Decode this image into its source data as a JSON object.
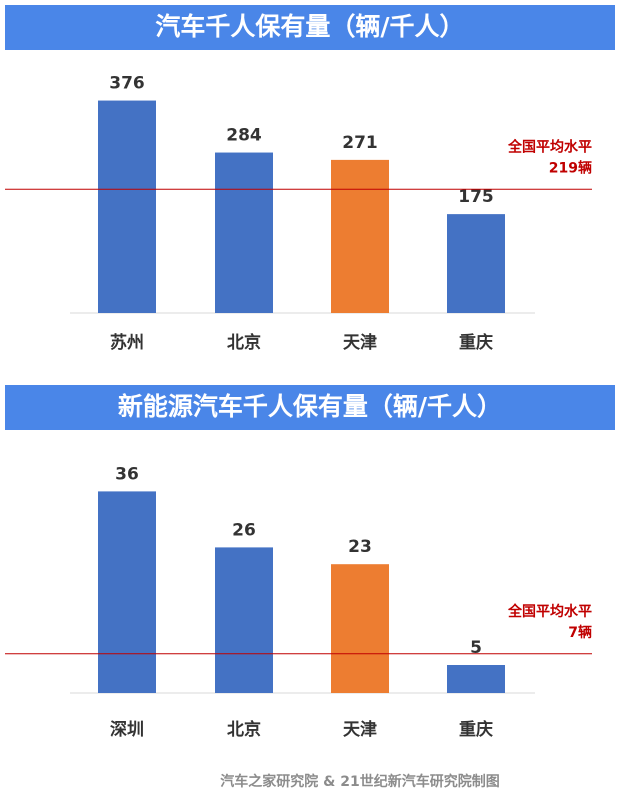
{
  "chart_data": [
    {
      "type": "bar",
      "title": "汽车千人保有量（辆/千人）",
      "categories": [
        "苏州",
        "北京",
        "天津",
        "重庆"
      ],
      "values": [
        376,
        284,
        271,
        175
      ],
      "colors": [
        "#4472c4",
        "#4472c4",
        "#ed7d31",
        "#4472c4"
      ],
      "ylim": [
        0,
        400
      ],
      "reference": {
        "value": 219,
        "color": "#c00000",
        "label": [
          "全国平均水平",
          "219辆"
        ]
      }
    },
    {
      "type": "bar",
      "title": "新能源汽车千人保有量（辆/千人）",
      "categories": [
        "深圳",
        "北京",
        "天津",
        "重庆"
      ],
      "values": [
        36,
        26,
        23,
        5
      ],
      "colors": [
        "#4472c4",
        "#4472c4",
        "#ed7d31",
        "#4472c4"
      ],
      "ylim": [
        0,
        40
      ],
      "reference": {
        "value": 7,
        "color": "#c00000",
        "label": [
          "全国平均水平",
          "7辆"
        ]
      }
    }
  ],
  "source": "汽车之家研究院 & 21世纪新汽车研究院制图"
}
